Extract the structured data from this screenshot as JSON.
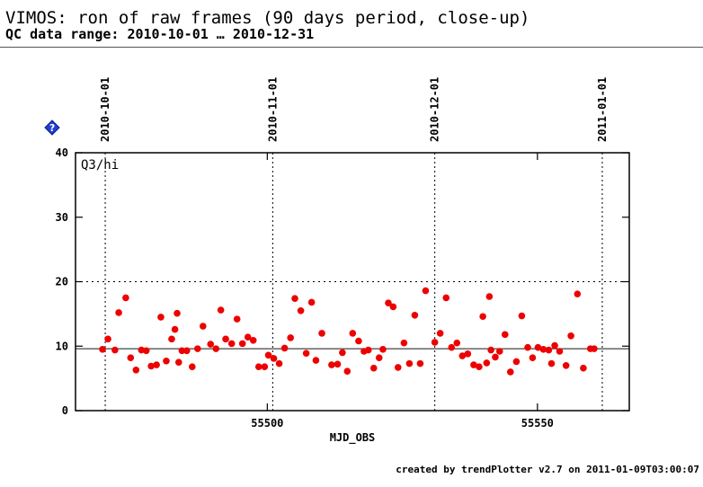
{
  "header": {
    "title": "VIMOS: ron of raw frames (90 days period, close-up)",
    "subtitle": "QC data range: 2010-10-01 … 2010-12-31"
  },
  "footer": {
    "credit": "created by trendPlotter v2.7 on 2011-01-09T03:00:07"
  },
  "colors": {
    "points": "#ee0000",
    "reference_line": "#444444",
    "info_icon": "#1f3fd6"
  },
  "chart_data": {
    "type": "scatter",
    "xlabel": "MJD_OBS",
    "panel_label": "Q3/hi",
    "xlim": [
      55464.5,
      55567
    ],
    "ylim": [
      0,
      40
    ],
    "x_ticks": [
      55500,
      55550
    ],
    "y_ticks": [
      0,
      10,
      20,
      30,
      40
    ],
    "date_markers": [
      {
        "label": "2010-10-01",
        "x": 55470
      },
      {
        "label": "2010-11-01",
        "x": 55501
      },
      {
        "label": "2010-12-01",
        "x": 55531
      },
      {
        "label": "2011-01-01",
        "x": 55562
      }
    ],
    "reference_line": 9.6,
    "threshold_line": 20,
    "series": [
      {
        "x": [
          55469.5,
          55470.5,
          55471.8,
          55472.5,
          55473.8,
          55474.7,
          55475.7,
          55476.7,
          55477.6,
          55478.5,
          55479.5,
          55480.3,
          55481.3,
          55482.3,
          55482.9,
          55483.3,
          55483.6,
          55484.2,
          55485.1,
          55486.1,
          55487.1,
          55488.1,
          55489.5,
          55490.5,
          55491.4,
          55492.3,
          55493.4,
          55494.4,
          55495.4,
          55496.4,
          55497.4,
          55498.4,
          55499.5,
          55500.2,
          55501.2,
          55502.2,
          55503.2,
          55504.3,
          55505.1,
          55506.2,
          55507.2,
          55508.2,
          55509.0,
          55510.1,
          55511.9,
          55513.0,
          55513.9,
          55514.8,
          55515.8,
          55516.9,
          55517.9,
          55518.7,
          55519.7,
          55520.7,
          55521.4,
          55522.4,
          55523.3,
          55524.2,
          55525.3,
          55526.3,
          55527.3,
          55528.3,
          55529.3,
          55531.0,
          55532.0,
          55533.1,
          55534.1,
          55535.1,
          55536.1,
          55537.1,
          55538.2,
          55539.2,
          55539.9,
          55540.6,
          55541.1,
          55541.4,
          55542.2,
          55543.0,
          55544.0,
          55545.0,
          55546.1,
          55547.1,
          55548.2,
          55549.1,
          55550.1,
          55551.1,
          55552.1,
          55552.6,
          55553.2,
          55554.1,
          55555.3,
          55556.2,
          55557.4,
          55558.5,
          55559.8,
          55560.5
        ],
        "y": [
          9.5,
          11.1,
          9.4,
          15.2,
          17.5,
          8.2,
          6.3,
          9.4,
          9.3,
          6.9,
          7.1,
          14.5,
          7.7,
          11.1,
          12.6,
          15.1,
          7.5,
          9.3,
          9.3,
          6.8,
          9.6,
          13.1,
          10.3,
          9.6,
          15.6,
          11.1,
          10.4,
          14.2,
          10.4,
          11.4,
          10.9,
          6.8,
          6.8,
          8.6,
          8.1,
          7.3,
          9.7,
          11.3,
          17.4,
          15.5,
          8.9,
          16.8,
          7.8,
          12.0,
          7.1,
          7.2,
          9.0,
          6.1,
          12.0,
          10.8,
          9.2,
          9.4,
          6.6,
          8.2,
          9.5,
          16.7,
          16.1,
          6.7,
          10.5,
          7.3,
          14.8,
          7.3,
          18.6,
          10.6,
          12.0,
          17.5,
          9.8,
          10.5,
          8.5,
          8.8,
          7.1,
          6.8,
          14.6,
          7.4,
          17.7,
          9.4,
          8.3,
          9.2,
          11.8,
          6.0,
          7.6,
          14.7,
          9.8,
          8.2,
          9.8,
          9.5,
          9.4,
          7.3,
          10.1,
          9.2,
          7.0,
          11.6,
          18.1,
          6.6,
          9.6,
          9.6
        ]
      }
    ]
  }
}
